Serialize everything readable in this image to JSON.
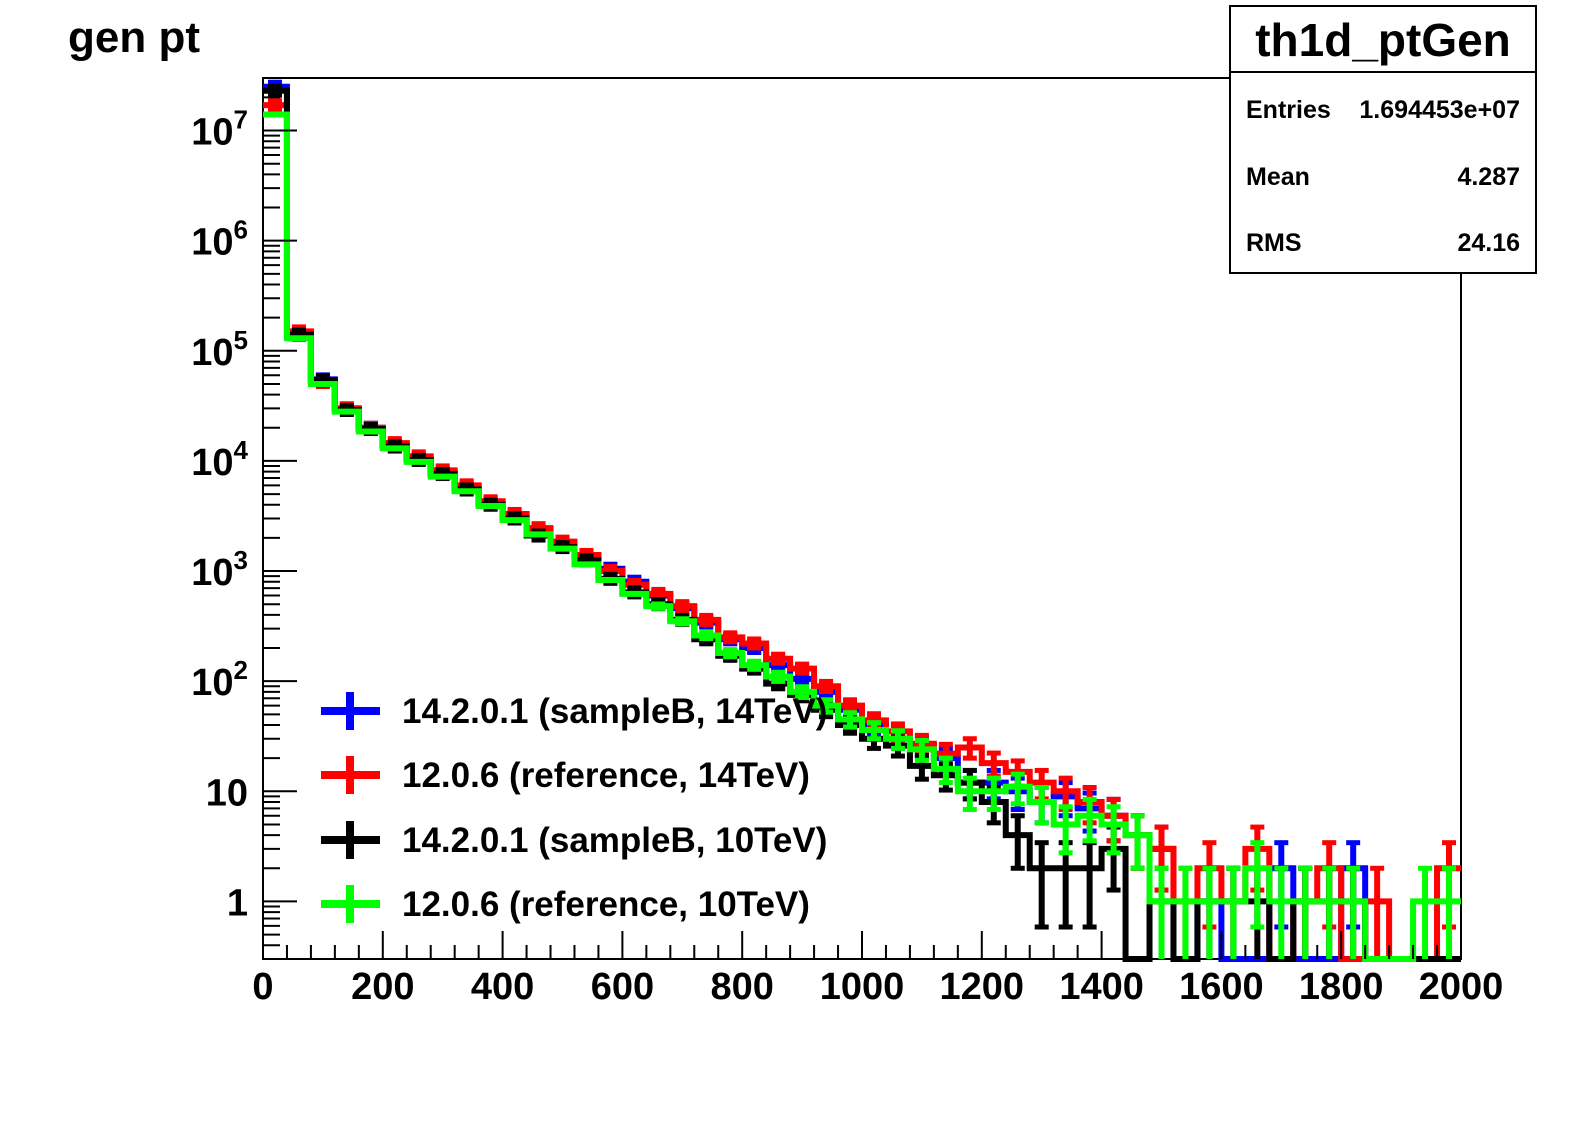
{
  "title": "gen pt",
  "stats": {
    "name": "th1d_ptGen",
    "rows": [
      {
        "label": "Entries",
        "value": "1.694453e+07"
      },
      {
        "label": "Mean",
        "value": "4.287"
      },
      {
        "label": "RMS",
        "value": "24.16"
      }
    ]
  },
  "chart_data": {
    "type": "histogram-step",
    "title": "gen pt",
    "xlabel": "",
    "ylabel": "",
    "xlim": [
      0,
      2000
    ],
    "ylim": [
      0.3,
      30000000
    ],
    "yscale": "log",
    "grid": false,
    "legend_position": "bottom-left",
    "bin_width": 40,
    "x_ticks": [
      {
        "value": 0,
        "label": "0"
      },
      {
        "value": 200,
        "label": "200"
      },
      {
        "value": 400,
        "label": "400"
      },
      {
        "value": 600,
        "label": "600"
      },
      {
        "value": 800,
        "label": "800"
      },
      {
        "value": 1000,
        "label": "1000"
      },
      {
        "value": 1200,
        "label": "1200"
      },
      {
        "value": 1400,
        "label": "1400"
      },
      {
        "value": 1600,
        "label": "1600"
      },
      {
        "value": 1800,
        "label": "1800"
      },
      {
        "value": 2000,
        "label": "2000"
      }
    ],
    "y_ticks": [
      {
        "value": 1,
        "label": "1"
      },
      {
        "value": 10,
        "label": "10"
      },
      {
        "value": 100,
        "base": "10",
        "exp": "2"
      },
      {
        "value": 1000,
        "base": "10",
        "exp": "3"
      },
      {
        "value": 10000,
        "base": "10",
        "exp": "4"
      },
      {
        "value": 100000,
        "base": "10",
        "exp": "5"
      },
      {
        "value": 1000000,
        "base": "10",
        "exp": "6"
      },
      {
        "value": 10000000,
        "base": "10",
        "exp": "7"
      }
    ],
    "series": [
      {
        "name": "14.2.0.1 (sampleB, 14TeV)",
        "color": "#0000ff",
        "values": [
          25000000.0,
          145000,
          55000,
          30000,
          20000,
          14000,
          10500,
          7800,
          5800,
          4200,
          3200,
          2400,
          1800,
          1350,
          1050,
          800,
          600,
          460,
          340,
          240,
          200,
          140,
          105,
          80,
          55,
          40,
          30,
          26,
          20,
          12,
          12,
          10,
          8,
          9,
          7,
          6,
          4,
          3,
          0,
          1,
          0,
          0,
          2,
          0,
          0,
          2,
          0,
          0,
          0,
          0
        ]
      },
      {
        "name": "12.0.6 (reference, 14TeV)",
        "color": "#ff0000",
        "values": [
          17000000.0,
          150000,
          52000,
          30000,
          20000,
          14500,
          11000,
          8200,
          6000,
          4300,
          3300,
          2450,
          1850,
          1400,
          1000,
          750,
          620,
          480,
          360,
          250,
          220,
          160,
          130,
          90,
          60,
          44,
          35,
          27,
          22,
          25,
          18,
          15,
          12,
          10,
          8,
          6,
          4,
          3,
          1,
          2,
          1,
          3,
          0,
          1,
          2,
          0,
          1,
          0,
          0,
          2
        ]
      },
      {
        "name": "14.2.0.1 (sampleB, 10TeV)",
        "color": "#000000",
        "values": [
          23000000.0,
          140000,
          54000,
          29000,
          19500,
          13500,
          10200,
          7600,
          5500,
          4000,
          3000,
          2100,
          1650,
          1250,
          850,
          640,
          500,
          360,
          240,
          170,
          130,
          95,
          75,
          55,
          40,
          30,
          26,
          17,
          14,
          12,
          8,
          4,
          2,
          2,
          2,
          3,
          0,
          1,
          0,
          1,
          1,
          1,
          0,
          1,
          1,
          1,
          0,
          0,
          0,
          0
        ]
      },
      {
        "name": "12.0.6 (reference, 10TeV)",
        "color": "#00ff00",
        "values": [
          14000000.0,
          130000,
          50000,
          28000,
          18500,
          13000,
          9800,
          7200,
          5300,
          3900,
          2900,
          2150,
          1600,
          1150,
          830,
          620,
          480,
          350,
          260,
          180,
          140,
          110,
          80,
          60,
          45,
          36,
          30,
          24,
          16,
          10,
          10,
          11,
          8,
          5,
          6,
          5,
          4,
          1,
          1,
          1,
          1,
          2,
          1,
          1,
          1,
          1,
          0,
          0,
          1,
          1
        ]
      }
    ]
  }
}
